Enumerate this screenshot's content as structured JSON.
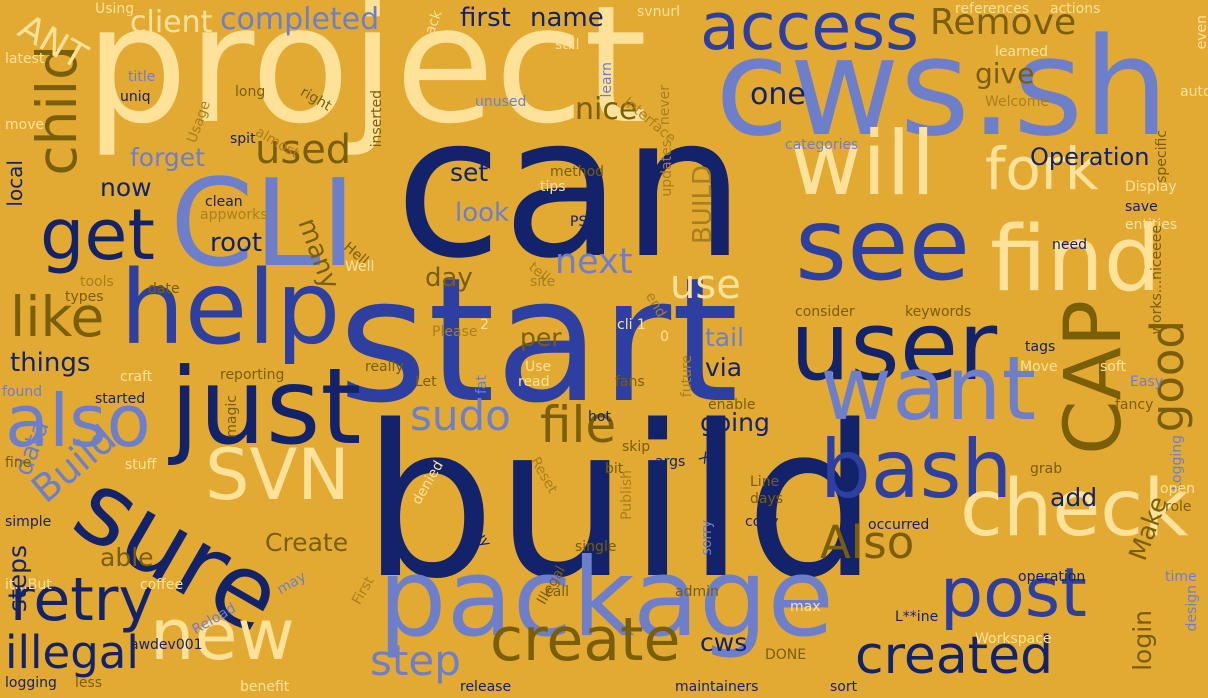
{
  "colors": {
    "background": "#E3AA33",
    "navy": "#13236B",
    "royal": "#2D3FA0",
    "periwinkle": "#6D7FCB",
    "cream": "#FFE29A",
    "olive": "#7A5E08",
    "tan": "#A97F1C"
  },
  "words": [
    {
      "text": "build",
      "c": "navy"
    },
    {
      "text": "start",
      "c": "royal"
    },
    {
      "text": "can",
      "c": "navy"
    },
    {
      "text": "project",
      "c": "cream"
    },
    {
      "text": "cws.sh",
      "c": "periwinkle"
    },
    {
      "text": "package",
      "c": "periwinkle"
    },
    {
      "text": "CLI",
      "c": "periwinkle"
    },
    {
      "text": "just",
      "c": "navy"
    },
    {
      "text": "help",
      "c": "royal"
    },
    {
      "text": "user",
      "c": "navy"
    },
    {
      "text": "sure",
      "c": "navy"
    },
    {
      "text": "see",
      "c": "royal"
    },
    {
      "text": "find",
      "c": "cream"
    },
    {
      "text": "will",
      "c": "cream"
    },
    {
      "text": "want",
      "c": "periwinkle"
    },
    {
      "text": "CAP",
      "c": "olive"
    },
    {
      "text": "bash",
      "c": "royal"
    },
    {
      "text": "check",
      "c": "cream"
    },
    {
      "text": "SVN",
      "c": "cream"
    },
    {
      "text": "access",
      "c": "royal"
    },
    {
      "text": "new",
      "c": "cream"
    },
    {
      "text": "post",
      "c": "royal"
    },
    {
      "text": "created",
      "c": "navy"
    },
    {
      "text": "create",
      "c": "olive"
    },
    {
      "text": "get",
      "c": "navy"
    },
    {
      "text": "also",
      "c": "periwinkle"
    },
    {
      "text": "retry",
      "c": "navy"
    },
    {
      "text": "fork",
      "c": "cream"
    },
    {
      "text": "child",
      "c": "olive"
    },
    {
      "text": "like",
      "c": "olive"
    },
    {
      "text": "file",
      "c": "olive"
    },
    {
      "text": "Also",
      "c": "olive"
    },
    {
      "text": "step",
      "c": "periwinkle"
    },
    {
      "text": "sudo",
      "c": "periwinkle"
    },
    {
      "text": "good",
      "c": "olive"
    },
    {
      "text": "illegal",
      "c": "navy"
    },
    {
      "text": "next",
      "c": "periwinkle"
    },
    {
      "text": "use",
      "c": "cream"
    },
    {
      "text": "Build",
      "c": "periwinkle"
    },
    {
      "text": "used",
      "c": "olive"
    },
    {
      "text": "Remove",
      "c": "olive"
    },
    {
      "text": "Operation",
      "c": "navy"
    },
    {
      "text": "ANT",
      "c": "cream"
    },
    {
      "text": "client",
      "c": "cream"
    },
    {
      "text": "completed",
      "c": "periwinkle"
    },
    {
      "text": "first",
      "c": "navy"
    },
    {
      "text": "name",
      "c": "navy"
    },
    {
      "text": "one",
      "c": "navy"
    },
    {
      "text": "nice",
      "c": "olive"
    },
    {
      "text": "give",
      "c": "olive"
    },
    {
      "text": "forget",
      "c": "periwinkle"
    },
    {
      "text": "now",
      "c": "navy"
    },
    {
      "text": "root",
      "c": "navy"
    },
    {
      "text": "set",
      "c": "navy"
    },
    {
      "text": "look",
      "c": "periwinkle"
    },
    {
      "text": "BUILD",
      "c": "tan"
    },
    {
      "text": "many",
      "c": "olive"
    },
    {
      "text": "day",
      "c": "olive"
    },
    {
      "text": "per",
      "c": "olive"
    },
    {
      "text": "tail",
      "c": "periwinkle"
    },
    {
      "text": "via",
      "c": "navy"
    },
    {
      "text": "going",
      "c": "navy"
    },
    {
      "text": "add",
      "c": "navy"
    },
    {
      "text": "things",
      "c": "navy"
    },
    {
      "text": "data",
      "c": "periwinkle"
    },
    {
      "text": "Create",
      "c": "olive"
    },
    {
      "text": "able",
      "c": "olive"
    },
    {
      "text": "steps",
      "c": "navy"
    },
    {
      "text": "login",
      "c": "olive"
    },
    {
      "text": "Make",
      "c": "olive"
    },
    {
      "text": "cws",
      "c": "navy"
    },
    {
      "text": "local",
      "c": "navy"
    },
    {
      "text": "Using",
      "c": "cream"
    },
    {
      "text": "svnurl",
      "c": "cream"
    },
    {
      "text": "back",
      "c": "cream"
    },
    {
      "text": "references",
      "c": "cream"
    },
    {
      "text": "actions",
      "c": "cream"
    },
    {
      "text": "even",
      "c": "cream"
    },
    {
      "text": "latest",
      "c": "cream"
    },
    {
      "text": "still",
      "c": "cream"
    },
    {
      "text": "learned",
      "c": "cream"
    },
    {
      "text": "learn",
      "c": "periwinkle"
    },
    {
      "text": "title",
      "c": "periwinkle"
    },
    {
      "text": "uniq",
      "c": "navy"
    },
    {
      "text": "long",
      "c": "olive"
    },
    {
      "text": "right",
      "c": "olive"
    },
    {
      "text": "Usage",
      "c": "tan"
    },
    {
      "text": "almost",
      "c": "tan"
    },
    {
      "text": "unused",
      "c": "periwinkle"
    },
    {
      "text": "never",
      "c": "tan"
    },
    {
      "text": "auto",
      "c": "cream"
    },
    {
      "text": "Welcome",
      "c": "tan"
    },
    {
      "text": "move",
      "c": "cream"
    },
    {
      "text": "spit",
      "c": "navy"
    },
    {
      "text": "inserted",
      "c": "olive"
    },
    {
      "text": "specific",
      "c": "olive"
    },
    {
      "text": "categories",
      "c": "periwinkle"
    },
    {
      "text": "Interface",
      "c": "tan"
    },
    {
      "text": "method",
      "c": "olive"
    },
    {
      "text": "tips",
      "c": "cream"
    },
    {
      "text": "updates",
      "c": "tan"
    },
    {
      "text": "Display",
      "c": "cream"
    },
    {
      "text": "clean",
      "c": "navy"
    },
    {
      "text": "appworks",
      "c": "tan"
    },
    {
      "text": "PSLs",
      "c": "navy"
    },
    {
      "text": "save",
      "c": "navy"
    },
    {
      "text": "entities",
      "c": "cream"
    },
    {
      "text": "Hell",
      "c": "olive"
    },
    {
      "text": "Well",
      "c": "cream"
    },
    {
      "text": "need",
      "c": "navy"
    },
    {
      "text": "works...niceeee",
      "c": "olive"
    },
    {
      "text": "tools",
      "c": "tan"
    },
    {
      "text": "types",
      "c": "olive"
    },
    {
      "text": "date",
      "c": "olive"
    },
    {
      "text": "tell",
      "c": "tan"
    },
    {
      "text": "site",
      "c": "tan"
    },
    {
      "text": "end",
      "c": "tan"
    },
    {
      "text": "consider",
      "c": "olive"
    },
    {
      "text": "keywords",
      "c": "olive"
    },
    {
      "text": "2",
      "c": "cream"
    },
    {
      "text": "Please",
      "c": "tan"
    },
    {
      "text": "cli 1",
      "c": "cream"
    },
    {
      "text": "0",
      "c": "cream"
    },
    {
      "text": "tags",
      "c": "navy"
    },
    {
      "text": "soft",
      "c": "cream"
    },
    {
      "text": "craft",
      "c": "cream"
    },
    {
      "text": "reporting",
      "c": "olive"
    },
    {
      "text": "really",
      "c": "olive"
    },
    {
      "text": "Use",
      "c": "cream"
    },
    {
      "text": "fans",
      "c": "olive"
    },
    {
      "text": "future",
      "c": "tan"
    },
    {
      "text": "Move",
      "c": "cream"
    },
    {
      "text": "found",
      "c": "periwinkle"
    },
    {
      "text": "Let",
      "c": "olive"
    },
    {
      "text": "read",
      "c": "cream"
    },
    {
      "text": "fat",
      "c": "periwinkle"
    },
    {
      "text": "Easy",
      "c": "periwinkle"
    },
    {
      "text": "started",
      "c": "navy"
    },
    {
      "text": "magic",
      "c": "olive"
    },
    {
      "text": "hot",
      "c": "navy"
    },
    {
      "text": "enable",
      "c": "olive"
    },
    {
      "text": "fancy",
      "c": "olive"
    },
    {
      "text": "skip",
      "c": "olive"
    },
    {
      "text": "fine",
      "c": "olive"
    },
    {
      "text": "stuff",
      "c": "cream"
    },
    {
      "text": "XML",
      "c": "navy"
    },
    {
      "text": "Logging",
      "c": "periwinkle"
    },
    {
      "text": "args",
      "c": "navy"
    },
    {
      "text": "bit",
      "c": "olive"
    },
    {
      "text": "Reset",
      "c": "tan"
    },
    {
      "text": "Line",
      "c": "olive"
    },
    {
      "text": "Publish",
      "c": "tan"
    },
    {
      "text": "days",
      "c": "olive"
    },
    {
      "text": "grab",
      "c": "olive"
    },
    {
      "text": "open",
      "c": "cream"
    },
    {
      "text": "role",
      "c": "olive"
    },
    {
      "text": "simple",
      "c": "navy"
    },
    {
      "text": "denied",
      "c": "cream"
    },
    {
      "text": "guy",
      "c": "navy"
    },
    {
      "text": "copy",
      "c": "navy"
    },
    {
      "text": "sorry",
      "c": "periwinkle"
    },
    {
      "text": "occurred",
      "c": "navy"
    },
    {
      "text": "single",
      "c": "olive"
    },
    {
      "text": "coffee",
      "c": "cream"
    },
    {
      "text": "it...But",
      "c": "cream"
    },
    {
      "text": "may",
      "c": "periwinkle"
    },
    {
      "text": "call",
      "c": "olive"
    },
    {
      "text": "operation",
      "c": "navy"
    },
    {
      "text": "time",
      "c": "periwinkle"
    },
    {
      "text": "Illegal",
      "c": "olive"
    },
    {
      "text": "admin",
      "c": "olive"
    },
    {
      "text": "max",
      "c": "cream"
    },
    {
      "text": "First",
      "c": "tan"
    },
    {
      "text": "design",
      "c": "periwinkle"
    },
    {
      "text": "L**ine",
      "c": "navy"
    },
    {
      "text": "Reload",
      "c": "periwinkle"
    },
    {
      "text": "awdev001",
      "c": "navy"
    },
    {
      "text": "Workspace",
      "c": "cream"
    },
    {
      "text": "DONE",
      "c": "olive"
    },
    {
      "text": "logging",
      "c": "navy"
    },
    {
      "text": "less",
      "c": "olive"
    },
    {
      "text": "benefit",
      "c": "cream"
    },
    {
      "text": "release",
      "c": "navy"
    },
    {
      "text": "maintainers",
      "c": "navy"
    },
    {
      "text": "sort",
      "c": "navy"
    }
  ]
}
